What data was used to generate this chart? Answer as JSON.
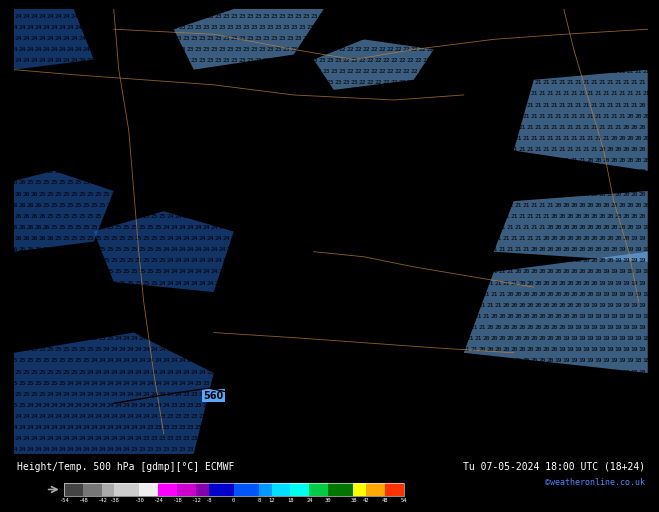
{
  "title_left": "Height/Temp. 500 hPa [gdmp][°C] ECMWF",
  "title_right": "Tu 07-05-2024 18:00 UTC (18+24)",
  "credit": "©weatheronline.co.uk",
  "bg_color": "#55aaff",
  "text_color": "#000000",
  "contour_line_color": "#000000",
  "geo_line_color": "#cc8833",
  "label_560": "560",
  "colorbar_segments": [
    [
      "#444444",
      -54,
      -48
    ],
    [
      "#777777",
      -48,
      -42
    ],
    [
      "#aaaaaa",
      -42,
      -38
    ],
    [
      "#cccccc",
      -38,
      -30
    ],
    [
      "#eeeeee",
      -30,
      -24
    ],
    [
      "#ff00ff",
      -24,
      -18
    ],
    [
      "#cc00cc",
      -18,
      -12
    ],
    [
      "#8800aa",
      -12,
      -8
    ],
    [
      "#0000cc",
      -8,
      0
    ],
    [
      "#0055ff",
      0,
      8
    ],
    [
      "#0099ff",
      8,
      12
    ],
    [
      "#00ddff",
      12,
      18
    ],
    [
      "#00ffee",
      18,
      24
    ],
    [
      "#00cc44",
      24,
      30
    ],
    [
      "#007700",
      30,
      38
    ],
    [
      "#ffff00",
      38,
      42
    ],
    [
      "#ffaa00",
      42,
      48
    ],
    [
      "#ff3300",
      48,
      54
    ]
  ],
  "tick_vals": [
    -54,
    -48,
    -42,
    -38,
    -30,
    -24,
    -18,
    -12,
    -8,
    0,
    8,
    12,
    18,
    24,
    30,
    38,
    42,
    48,
    54
  ],
  "tick_labels": [
    "-54",
    "-48",
    "-42",
    "-38",
    "-30",
    "-24",
    "-18",
    "-12",
    "-8",
    "0",
    "8",
    "12",
    "18",
    "24",
    "30",
    "38",
    "42",
    "48",
    "54"
  ]
}
